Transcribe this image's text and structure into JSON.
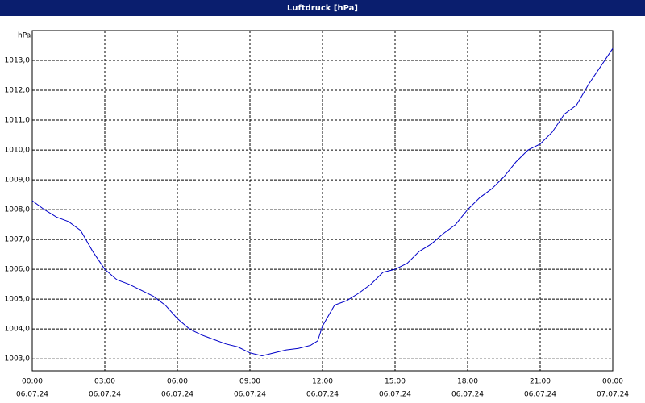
{
  "chart_data": {
    "type": "line",
    "title": "Luftdruck [hPa]",
    "y_label": "hPa",
    "x": [
      0,
      0.5,
      1,
      1.5,
      2,
      2.5,
      3,
      3.5,
      4,
      4.5,
      5,
      5.5,
      6,
      6.5,
      7,
      7.5,
      8,
      8.5,
      9,
      9.5,
      10,
      10.5,
      11,
      11.5,
      11.8,
      12,
      12.5,
      13,
      13.5,
      14,
      14.5,
      15,
      15.5,
      16,
      16.5,
      17,
      17.5,
      18,
      18.5,
      19,
      19.5,
      20,
      20.5,
      21,
      21.5,
      22,
      22.5,
      23,
      23.5,
      24
    ],
    "series": [
      {
        "name": "Luftdruck",
        "color": "#0000c8",
        "values": [
          1008.3,
          1008.0,
          1007.75,
          1007.6,
          1007.3,
          1006.6,
          1006.0,
          1005.65,
          1005.5,
          1005.3,
          1005.1,
          1004.8,
          1004.35,
          1004.0,
          1003.8,
          1003.65,
          1003.5,
          1003.4,
          1003.2,
          1003.1,
          1003.2,
          1003.3,
          1003.35,
          1003.45,
          1003.6,
          1004.1,
          1004.8,
          1004.95,
          1005.2,
          1005.5,
          1005.9,
          1006.0,
          1006.2,
          1006.6,
          1006.85,
          1007.2,
          1007.5,
          1008.0,
          1008.4,
          1008.7,
          1009.1,
          1009.6,
          1010.0,
          1010.2,
          1010.6,
          1011.2,
          1011.5,
          1012.2,
          1012.8,
          1013.4
        ]
      }
    ],
    "xlim": [
      0,
      24
    ],
    "xticks": [
      {
        "value": 0,
        "label": [
          "00:00",
          "06.07.24"
        ]
      },
      {
        "value": 3,
        "label": [
          "03:00",
          "06.07.24"
        ]
      },
      {
        "value": 6,
        "label": [
          "06:00",
          "06.07.24"
        ]
      },
      {
        "value": 9,
        "label": [
          "09:00",
          "06.07.24"
        ]
      },
      {
        "value": 12,
        "label": [
          "12:00",
          "06.07.24"
        ]
      },
      {
        "value": 15,
        "label": [
          "15:00",
          "06.07.24"
        ]
      },
      {
        "value": 18,
        "label": [
          "18:00",
          "06.07.24"
        ]
      },
      {
        "value": 21,
        "label": [
          "21:00",
          "06.07.24"
        ]
      },
      {
        "value": 24,
        "label": [
          "00:00",
          "07.07.24"
        ]
      }
    ],
    "ylim": [
      1002.6,
      1014.0
    ],
    "yticks": [
      {
        "value": 1003,
        "label": "1003,0"
      },
      {
        "value": 1004,
        "label": "1004,0"
      },
      {
        "value": 1005,
        "label": "1005,0"
      },
      {
        "value": 1006,
        "label": "1006,0"
      },
      {
        "value": 1007,
        "label": "1007,0"
      },
      {
        "value": 1008,
        "label": "1008,0"
      },
      {
        "value": 1009,
        "label": "1009,0"
      },
      {
        "value": 1010,
        "label": "1010,0"
      },
      {
        "value": 1011,
        "label": "1011,0"
      },
      {
        "value": 1012,
        "label": "1012,0"
      },
      {
        "value": 1013,
        "label": "1013,0"
      }
    ],
    "grid": true
  }
}
